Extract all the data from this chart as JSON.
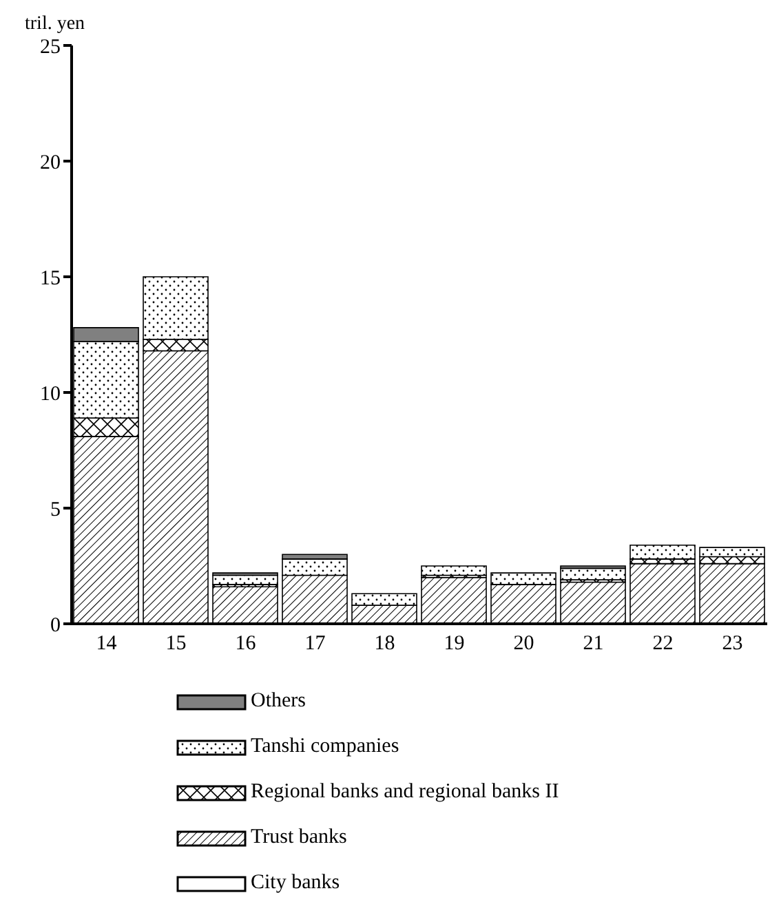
{
  "chart_data": {
    "type": "bar",
    "stacked": true,
    "ylabel": "tril. yen",
    "categories": [
      "14",
      "15",
      "16",
      "17",
      "18",
      "19",
      "20",
      "21",
      "22",
      "23"
    ],
    "ylim": [
      0,
      25
    ],
    "yticks": [
      0,
      5,
      10,
      15,
      20,
      25
    ],
    "legend": "bottom",
    "series": [
      {
        "name": "City banks",
        "color": "#ffffff",
        "values": [
          null,
          null,
          null,
          null,
          null,
          null,
          null,
          null,
          null,
          null
        ]
      },
      {
        "name": "Trust banks",
        "color": "#000000",
        "values": [
          8.1,
          11.8,
          1.6,
          2.1,
          0.8,
          2.0,
          1.7,
          1.8,
          2.6,
          2.6
        ]
      },
      {
        "name": "Regional banks and regional banks II",
        "color": "#000000",
        "values": [
          0.8,
          0.5,
          0.1,
          null,
          null,
          0.1,
          null,
          0.1,
          0.2,
          0.3
        ]
      },
      {
        "name": "Tanshi companies",
        "color": "#000000",
        "values": [
          3.3,
          2.7,
          0.4,
          0.7,
          0.5,
          0.4,
          0.5,
          0.5,
          0.6,
          0.4
        ]
      },
      {
        "name": "Others",
        "color": "#808080",
        "values": [
          0.6,
          null,
          0.1,
          0.2,
          null,
          null,
          null,
          0.1,
          null,
          null
        ]
      }
    ]
  }
}
